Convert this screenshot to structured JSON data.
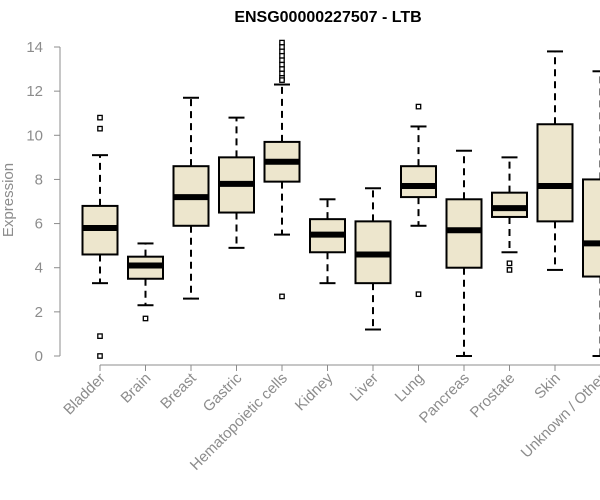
{
  "chart_data": {
    "type": "boxplot",
    "title": "ENSG00000227507 - LTB",
    "xlabel": "",
    "ylabel": "Expression",
    "ylim": [
      0,
      14
    ],
    "yticks": [
      0,
      2,
      4,
      6,
      8,
      10,
      12,
      14
    ],
    "box_fill": "#ede6cd",
    "categories": [
      "Bladder",
      "Brain",
      "Breast",
      "Gastric",
      "Hematopoietic cells",
      "Kidney",
      "Liver",
      "Lung",
      "Pancreas",
      "Prostate",
      "Skin",
      "Unknown / Other"
    ],
    "series": [
      {
        "name": "Bladder",
        "whisker_low": 3.3,
        "q1": 4.6,
        "median": 5.8,
        "q3": 6.8,
        "whisker_high": 9.1,
        "outliers": [
          10.8,
          10.3,
          0.9,
          0.0
        ]
      },
      {
        "name": "Brain",
        "whisker_low": 2.3,
        "q1": 3.5,
        "median": 4.1,
        "q3": 4.5,
        "whisker_high": 5.1,
        "outliers": [
          1.7
        ]
      },
      {
        "name": "Breast",
        "whisker_low": 2.6,
        "q1": 5.9,
        "median": 7.2,
        "q3": 8.6,
        "whisker_high": 11.7,
        "outliers": []
      },
      {
        "name": "Gastric",
        "whisker_low": 4.9,
        "q1": 6.5,
        "median": 7.8,
        "q3": 9.0,
        "whisker_high": 10.8,
        "outliers": []
      },
      {
        "name": "Hematopoietic cells",
        "whisker_low": 5.5,
        "q1": 7.9,
        "median": 8.8,
        "q3": 9.7,
        "whisker_high": 12.3,
        "outliers": [
          14.2,
          14.0,
          13.8,
          13.6,
          13.4,
          13.2,
          13.0,
          12.8,
          12.6,
          12.5,
          2.7
        ]
      },
      {
        "name": "Kidney",
        "whisker_low": 3.3,
        "q1": 4.7,
        "median": 5.5,
        "q3": 6.2,
        "whisker_high": 7.1,
        "outliers": []
      },
      {
        "name": "Liver",
        "whisker_low": 1.2,
        "q1": 3.3,
        "median": 4.6,
        "q3": 6.1,
        "whisker_high": 7.6,
        "outliers": []
      },
      {
        "name": "Lung",
        "whisker_low": 5.9,
        "q1": 7.2,
        "median": 7.7,
        "q3": 8.6,
        "whisker_high": 10.4,
        "outliers": [
          11.3,
          2.8
        ]
      },
      {
        "name": "Pancreas",
        "whisker_low": 0.0,
        "q1": 4.0,
        "median": 5.7,
        "q3": 7.1,
        "whisker_high": 9.3,
        "outliers": []
      },
      {
        "name": "Prostate",
        "whisker_low": 4.7,
        "q1": 6.3,
        "median": 6.7,
        "q3": 7.4,
        "whisker_high": 9.0,
        "outliers": [
          4.2,
          3.9
        ]
      },
      {
        "name": "Skin",
        "whisker_low": 3.9,
        "q1": 6.1,
        "median": 7.7,
        "q3": 10.5,
        "whisker_high": 13.8,
        "outliers": []
      },
      {
        "name": "Unknown / Other",
        "whisker_low": 0.0,
        "q1": 3.6,
        "median": 5.1,
        "q3": 8.0,
        "whisker_high": 12.9,
        "outliers": []
      }
    ]
  }
}
